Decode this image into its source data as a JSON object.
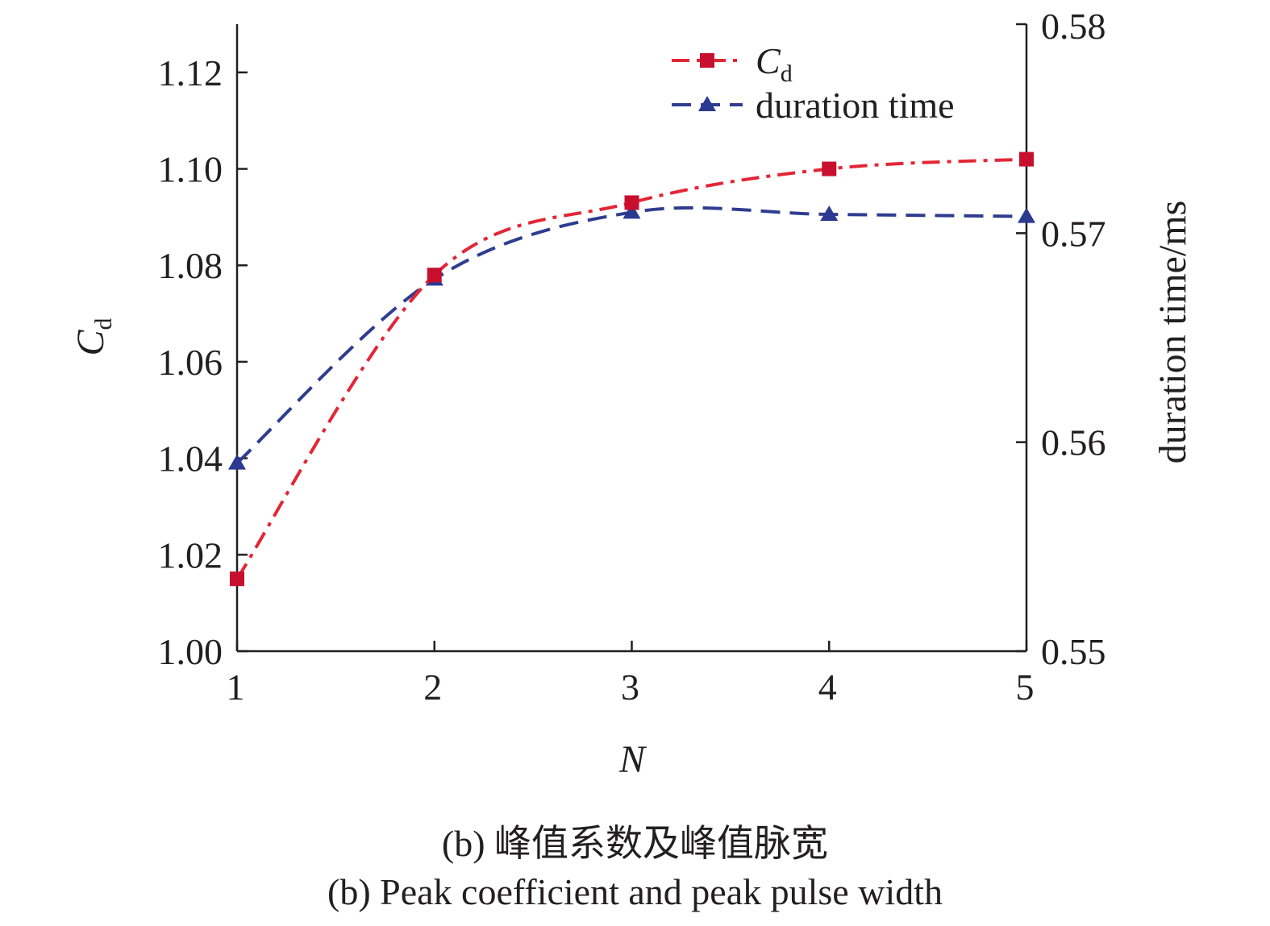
{
  "chart_data": {
    "type": "line",
    "x": [
      1,
      2,
      3,
      4,
      5
    ],
    "xlabel": "N",
    "xlim": [
      1,
      5
    ],
    "xticks": [
      "1",
      "2",
      "3",
      "4",
      "5"
    ],
    "ylabel_left": {
      "main": "C",
      "sub": "d"
    },
    "ylim_left": [
      1.0,
      1.13
    ],
    "yticks_left": [
      "1.00",
      "1.02",
      "1.04",
      "1.06",
      "1.08",
      "1.10",
      "1.12"
    ],
    "ylabel_right": "duration time/ms",
    "ylim_right": [
      0.55,
      0.58
    ],
    "yticks_right": [
      "0.55",
      "0.56",
      "0.57",
      "0.58"
    ],
    "grid": false,
    "legend_position": "top-right",
    "series": [
      {
        "name": "C",
        "name_sub": "d",
        "axis": "left",
        "marker": "square",
        "line_style": "dash-dot",
        "color": "#e32636",
        "marker_color": "#c8102e",
        "values": [
          1.015,
          1.078,
          1.093,
          1.1,
          1.102
        ]
      },
      {
        "name": "duration time",
        "axis": "right",
        "marker": "triangle",
        "line_style": "dashed",
        "color": "#2e3d8f",
        "marker_color": "#2b3990",
        "values": [
          0.559,
          0.5678,
          0.571,
          0.5709,
          0.5708
        ]
      }
    ]
  },
  "caption": {
    "line1": "(b) 峰值系数及峰值脉宽",
    "line2": "(b) Peak coefficient and peak pulse width"
  }
}
